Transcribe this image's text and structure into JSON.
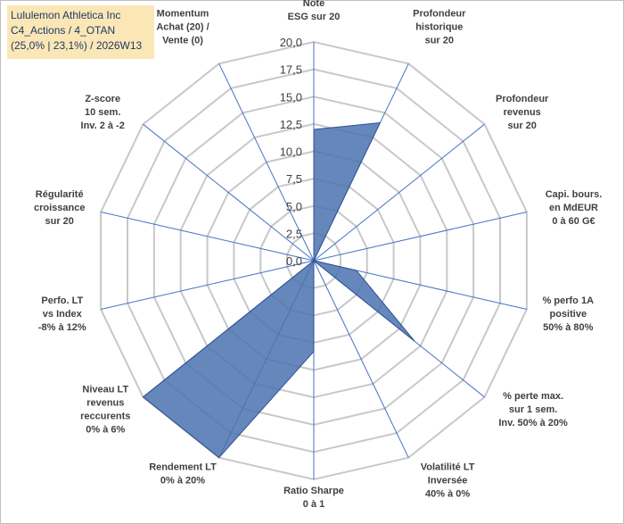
{
  "header": {
    "line1": "Lululemon Athletica Inc",
    "line2": "C4_Actions / 4_OTAN",
    "line3": "(25,0% | 23,1%) / 2026W13"
  },
  "colors": {
    "grid": "#c8c8c8",
    "spoke": "#4472c4",
    "fill": "#4a72b0",
    "title_bg": "#fbe7b6",
    "title_text": "#1f3864"
  },
  "chart_data": {
    "type": "radar",
    "rmin": 0,
    "rmax": 20,
    "step": 2.5,
    "tick_labels": [
      "0,0",
      "2,5",
      "5,0",
      "7,5",
      "10,0",
      "12,5",
      "15,0",
      "17,5",
      "20,0"
    ],
    "axes": [
      {
        "label": [
          "Note",
          "ESG sur 20"
        ],
        "value": 12.0
      },
      {
        "label": [
          "Profondeur",
          "historique",
          "sur 20"
        ],
        "value": 14.0
      },
      {
        "label": [
          "Profondeur",
          "revenus",
          "sur 20"
        ],
        "value": 0.0
      },
      {
        "label": [
          "Capi. bours.",
          "en MdEUR",
          "0 à 60 G€"
        ],
        "value": 0.0
      },
      {
        "label": [
          "% perfo 1A",
          "positive",
          "50% à 80%"
        ],
        "value": 4.0
      },
      {
        "label": [
          "% perte max.",
          "sur 1 sem.",
          "Inv. 50% à 20%"
        ],
        "value": 11.8
      },
      {
        "label": [
          "Volatilité LT",
          "Inversée",
          "40% à 0%"
        ],
        "value": 0.0
      },
      {
        "label": [
          "Ratio Sharpe",
          "0 à 1"
        ],
        "value": 8.3
      },
      {
        "label": [
          "Rendement LT",
          "0% à 20%"
        ],
        "value": 20.0
      },
      {
        "label": [
          "Niveau LT",
          "revenus",
          "reccurents",
          "0% à 6%"
        ],
        "value": 20.0
      },
      {
        "label": [
          "Perfo. LT",
          "vs Index",
          "-8% à 12%"
        ],
        "value": 0.0
      },
      {
        "label": [
          "Régularité",
          "croissance",
          "sur 20"
        ],
        "value": 0.0
      },
      {
        "label": [
          "Z-score",
          "10 sem.",
          "Inv. 2 à -2"
        ],
        "value": 0.0
      },
      {
        "label": [
          "Momentum",
          "Achat (20) /",
          "Vente (0)"
        ],
        "value": 0.0
      }
    ]
  }
}
